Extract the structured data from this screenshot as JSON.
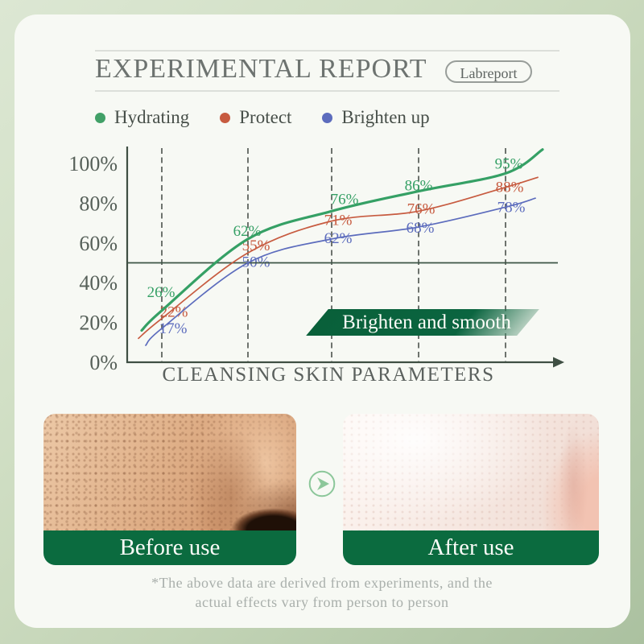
{
  "header": {
    "title": "EXPERIMENTAL REPORT",
    "badge": "Labreport"
  },
  "legend": {
    "items": [
      {
        "label": "Hydrating",
        "color": "#41a067"
      },
      {
        "label": "Protect",
        "color": "#c75b40"
      },
      {
        "label": "Brighten up",
        "color": "#5c6cbd"
      }
    ]
  },
  "chart_data": {
    "type": "line",
    "title": "CLEANSING SKIN PARAMETERS",
    "unit": "%",
    "ylim": [
      0,
      100
    ],
    "y_ticks": [
      "100%",
      "80%",
      "60%",
      "40%",
      "20%",
      "0%"
    ],
    "grid": "dashed-vertical",
    "x_checkpoints": 5,
    "reference_line_pct": 50,
    "legend_position": "top",
    "series": [
      {
        "name": "Hydrating",
        "color": "#35a065",
        "values": [
          26,
          62,
          76,
          86,
          95
        ]
      },
      {
        "name": "Protect",
        "color": "#c75b40",
        "values": [
          22,
          55,
          71,
          76,
          88
        ]
      },
      {
        "name": "Brighten up",
        "color": "#5c6cbd",
        "values": [
          17,
          50,
          62,
          68,
          78
        ]
      }
    ],
    "annotation": "Brighten and smooth"
  },
  "banner": {
    "color": "#0a5f38"
  },
  "photos": {
    "before_label": "Before use",
    "after_label": "After use",
    "bar_color": "#0b6b3f"
  },
  "footnote": {
    "line1": "*The above data are derived from experiments, and the",
    "line2": "actual effects vary from person to person"
  },
  "colors": {
    "axis": "#3f4f43",
    "gridline": "#4c524c",
    "reference_line": "#3d5446",
    "tick_label": "#566059",
    "card_bg": "#f7f9f4"
  }
}
